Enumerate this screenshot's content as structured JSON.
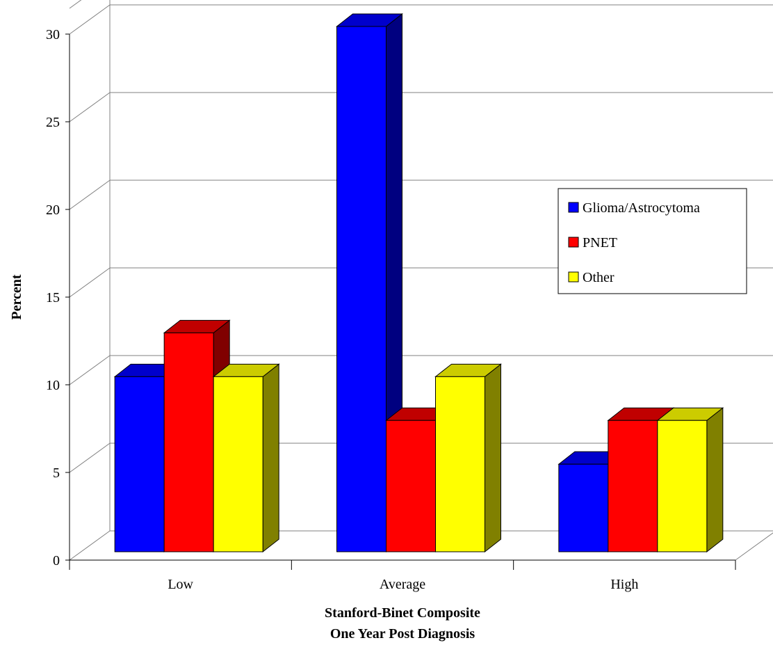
{
  "chart_data": {
    "type": "bar",
    "style": "3d-clustered-column",
    "categories": [
      "Low",
      "Average",
      "High"
    ],
    "series": [
      {
        "name": "Glioma/Astrocytoma",
        "values": [
          10,
          30,
          5
        ],
        "color": "#0000FF",
        "top_color": "#0000CC",
        "side_color": "#000080"
      },
      {
        "name": "PNET",
        "values": [
          12.5,
          7.5,
          7.5
        ],
        "color": "#FF0000",
        "top_color": "#C00000",
        "side_color": "#800000"
      },
      {
        "name": "Other",
        "values": [
          10,
          10,
          7.5
        ],
        "color": "#FFFF00",
        "top_color": "#CCCC00",
        "side_color": "#808000"
      }
    ],
    "yticks": [
      0,
      5,
      10,
      15,
      20,
      25,
      30
    ],
    "ylim": [
      0,
      30
    ],
    "ylabel": "Percent",
    "xlabel_lines": [
      "Stanford-Binet Composite",
      "One Year Post Diagnosis"
    ],
    "legend_position": "right",
    "grid": true
  }
}
